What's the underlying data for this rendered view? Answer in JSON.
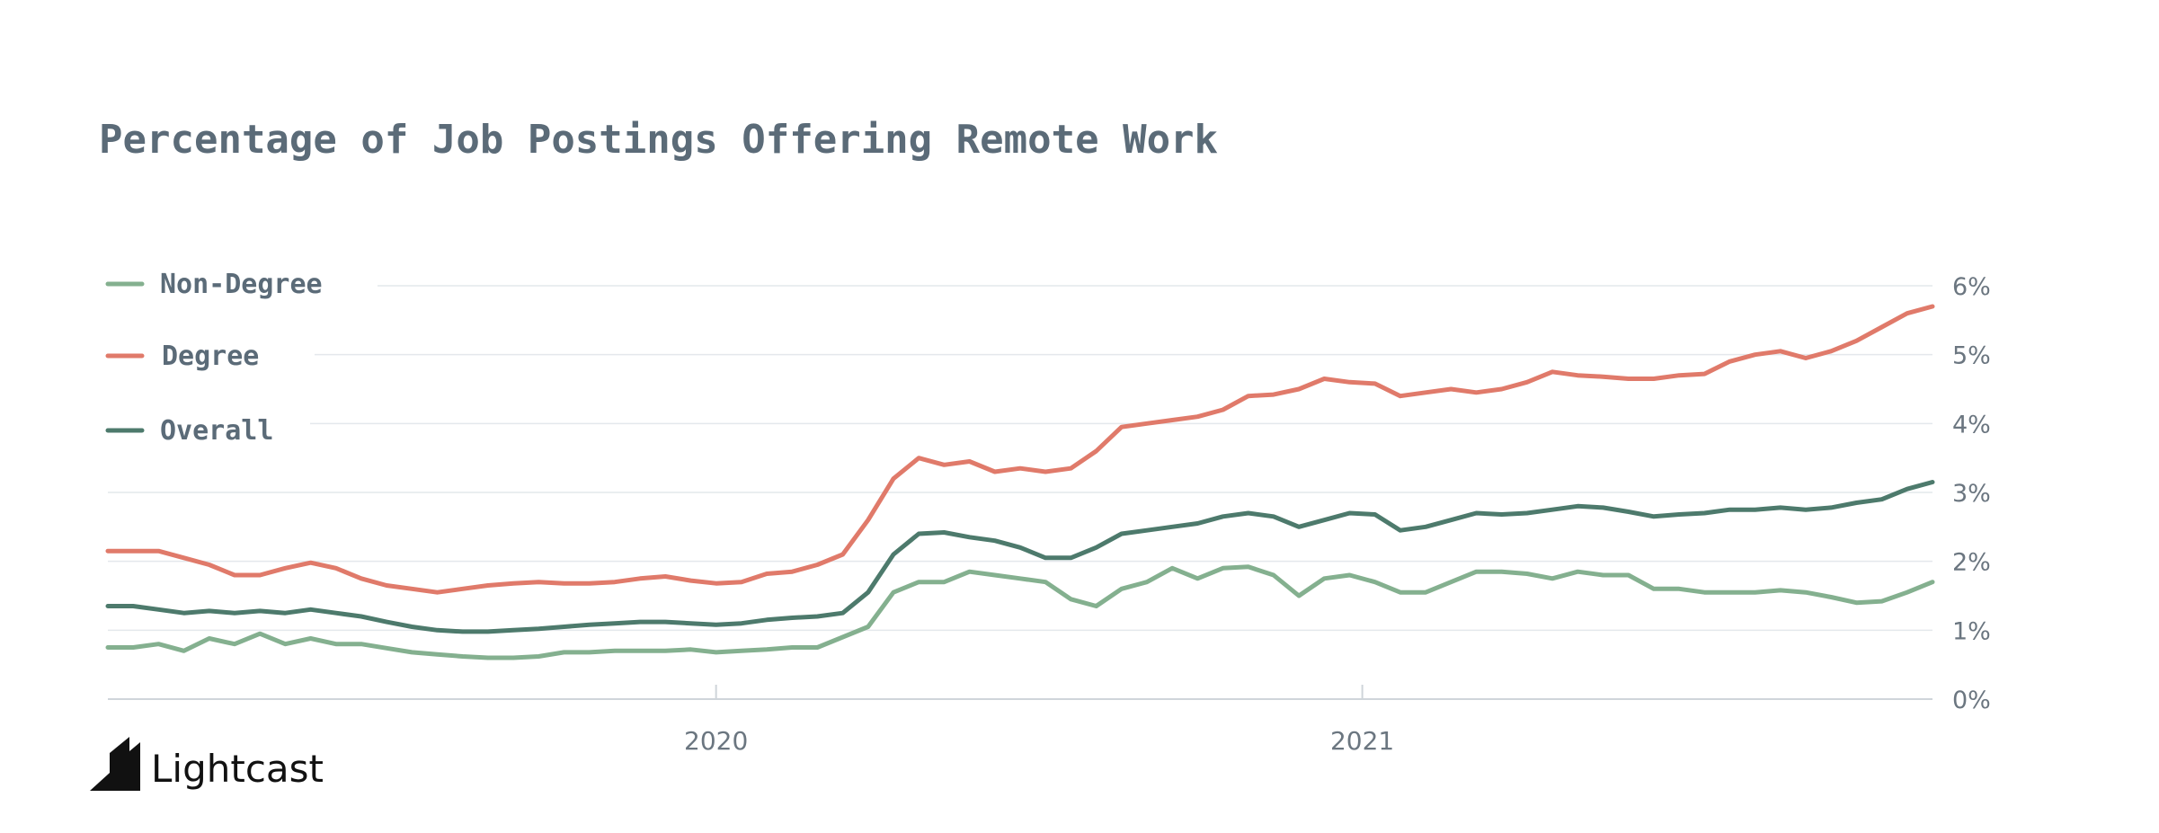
{
  "brand": {
    "name": "Lightcast",
    "logo_icon": "lightcast-mark-icon"
  },
  "colors": {
    "title": "#5b6b78",
    "axis_text": "#6b7680",
    "grid": "#e4e8ec",
    "non_degree": "#84b08f",
    "degree": "#e07a6a",
    "overall": "#4d7a6c"
  },
  "chart_data": {
    "type": "line",
    "title": "Percentage of Job Postings Offering Remote Work",
    "xlabel": "",
    "ylabel": "",
    "y_axis_side": "right",
    "ylim": [
      0,
      6
    ],
    "yticks": [
      0,
      1,
      2,
      3,
      4,
      5,
      6
    ],
    "ytick_labels": [
      "0%",
      "1%",
      "2%",
      "3%",
      "4%",
      "5%",
      "6%"
    ],
    "xlim": [
      0,
      144
    ],
    "xticks": [
      48,
      99
    ],
    "xtick_labels": [
      "2020",
      "2021"
    ],
    "legend_position": "top-left",
    "x": [
      0,
      2,
      4,
      6,
      8,
      10,
      12,
      14,
      16,
      18,
      20,
      22,
      24,
      26,
      28,
      30,
      32,
      34,
      36,
      38,
      40,
      42,
      44,
      46,
      48,
      50,
      52,
      54,
      56,
      58,
      60,
      62,
      64,
      66,
      68,
      70,
      72,
      74,
      76,
      78,
      80,
      82,
      84,
      86,
      88,
      90,
      92,
      94,
      96,
      98,
      100,
      102,
      104,
      106,
      108,
      110,
      112,
      114,
      116,
      118,
      120,
      122,
      124,
      126,
      128,
      130,
      132,
      134,
      136,
      138,
      140,
      142,
      144
    ],
    "series": [
      {
        "name": "Non-Degree",
        "values": [
          0.75,
          0.75,
          0.8,
          0.7,
          0.88,
          0.8,
          0.95,
          0.8,
          0.88,
          0.8,
          0.8,
          0.74,
          0.68,
          0.65,
          0.62,
          0.6,
          0.6,
          0.62,
          0.68,
          0.68,
          0.7,
          0.7,
          0.7,
          0.72,
          0.68,
          0.7,
          0.72,
          0.75,
          0.75,
          0.9,
          1.05,
          1.55,
          1.7,
          1.7,
          1.85,
          1.8,
          1.75,
          1.7,
          1.45,
          1.35,
          1.6,
          1.7,
          1.9,
          1.75,
          1.9,
          1.92,
          1.8,
          1.5,
          1.75,
          1.8,
          1.7,
          1.55,
          1.55,
          1.7,
          1.85,
          1.85,
          1.82,
          1.75,
          1.85,
          1.8,
          1.8,
          1.6,
          1.6,
          1.55,
          1.55,
          1.55,
          1.58,
          1.55,
          1.48,
          1.4,
          1.42,
          1.55,
          1.7
        ]
      },
      {
        "name": "Degree",
        "values": [
          2.15,
          2.15,
          2.15,
          2.05,
          1.95,
          1.8,
          1.8,
          1.9,
          1.98,
          1.9,
          1.75,
          1.65,
          1.6,
          1.55,
          1.6,
          1.65,
          1.68,
          1.7,
          1.68,
          1.68,
          1.7,
          1.75,
          1.78,
          1.72,
          1.68,
          1.7,
          1.82,
          1.85,
          1.95,
          2.1,
          2.6,
          3.2,
          3.5,
          3.4,
          3.45,
          3.3,
          3.35,
          3.3,
          3.35,
          3.6,
          3.95,
          4.0,
          4.05,
          4.1,
          4.2,
          4.4,
          4.42,
          4.5,
          4.65,
          4.6,
          4.58,
          4.4,
          4.45,
          4.5,
          4.45,
          4.5,
          4.6,
          4.75,
          4.7,
          4.68,
          4.65,
          4.65,
          4.7,
          4.72,
          4.9,
          5.0,
          5.05,
          4.95,
          5.05,
          5.2,
          5.4,
          5.6,
          5.7
        ]
      },
      {
        "name": "Overall",
        "values": [
          1.35,
          1.35,
          1.3,
          1.25,
          1.28,
          1.25,
          1.28,
          1.25,
          1.3,
          1.25,
          1.2,
          1.12,
          1.05,
          1.0,
          0.98,
          0.98,
          1.0,
          1.02,
          1.05,
          1.08,
          1.1,
          1.12,
          1.12,
          1.1,
          1.08,
          1.1,
          1.15,
          1.18,
          1.2,
          1.25,
          1.55,
          2.1,
          2.4,
          2.42,
          2.35,
          2.3,
          2.2,
          2.05,
          2.05,
          2.2,
          2.4,
          2.45,
          2.5,
          2.55,
          2.65,
          2.7,
          2.65,
          2.5,
          2.6,
          2.7,
          2.68,
          2.45,
          2.5,
          2.6,
          2.7,
          2.68,
          2.7,
          2.75,
          2.8,
          2.78,
          2.72,
          2.65,
          2.68,
          2.7,
          2.75,
          2.75,
          2.78,
          2.75,
          2.78,
          2.85,
          2.9,
          3.05,
          3.15
        ]
      }
    ]
  }
}
